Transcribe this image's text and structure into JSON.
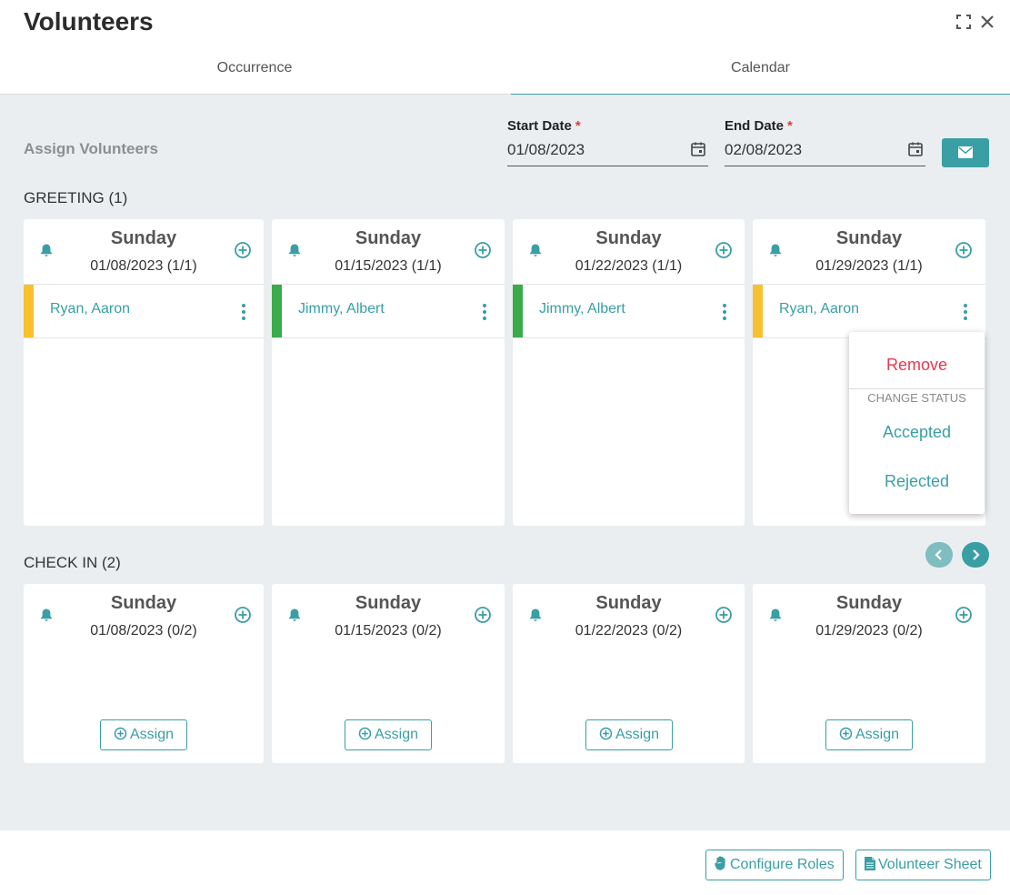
{
  "header": {
    "title": "Volunteers"
  },
  "tabs": [
    {
      "label": "Occurrence"
    },
    {
      "label": "Calendar"
    }
  ],
  "assign": {
    "title": "Assign Volunteers",
    "start_label": "Start Date",
    "start_value": "01/08/2023",
    "end_label": "End Date",
    "end_value": "02/08/2023",
    "required_mark": "*"
  },
  "sections": [
    {
      "title": "GREETING (1)",
      "cards": [
        {
          "day": "Sunday",
          "date": "01/08/2023 (1/1)",
          "volunteer": "Ryan, Aaron",
          "status_color": "#f9c02e"
        },
        {
          "day": "Sunday",
          "date": "01/15/2023 (1/1)",
          "volunteer": "Jimmy, Albert",
          "status_color": "#3aab4a"
        },
        {
          "day": "Sunday",
          "date": "01/22/2023 (1/1)",
          "volunteer": "Jimmy, Albert",
          "status_color": "#3aab4a"
        },
        {
          "day": "Sunday",
          "date": "01/29/2023 (1/1)",
          "volunteer": "Ryan, Aaron",
          "status_color": "#f9c02e"
        }
      ]
    },
    {
      "title": "CHECK IN (2)",
      "cards": [
        {
          "day": "Sunday",
          "date": "01/08/2023 (0/2)",
          "assign_label": "Assign"
        },
        {
          "day": "Sunday",
          "date": "01/15/2023 (0/2)",
          "assign_label": "Assign"
        },
        {
          "day": "Sunday",
          "date": "01/22/2023 (0/2)",
          "assign_label": "Assign"
        },
        {
          "day": "Sunday",
          "date": "01/29/2023 (0/2)",
          "assign_label": "Assign"
        }
      ]
    }
  ],
  "context_menu": {
    "remove": "Remove",
    "change_status": "CHANGE STATUS",
    "accepted": "Accepted",
    "rejected": "Rejected"
  },
  "footer": {
    "configure_roles": "Configure Roles",
    "volunteer_sheet": "Volunteer Sheet"
  },
  "colors": {
    "accent": "#3a9ea5",
    "danger": "#e53950",
    "pending": "#f9c02e",
    "accepted": "#3aab4a"
  },
  "icons": [
    "expand-icon",
    "close-icon",
    "calendar-icon",
    "envelope-icon",
    "bell-icon",
    "plus-circle-icon",
    "kebab-icon",
    "chevron-left-icon",
    "chevron-right-icon",
    "hand-icon",
    "document-icon"
  ]
}
